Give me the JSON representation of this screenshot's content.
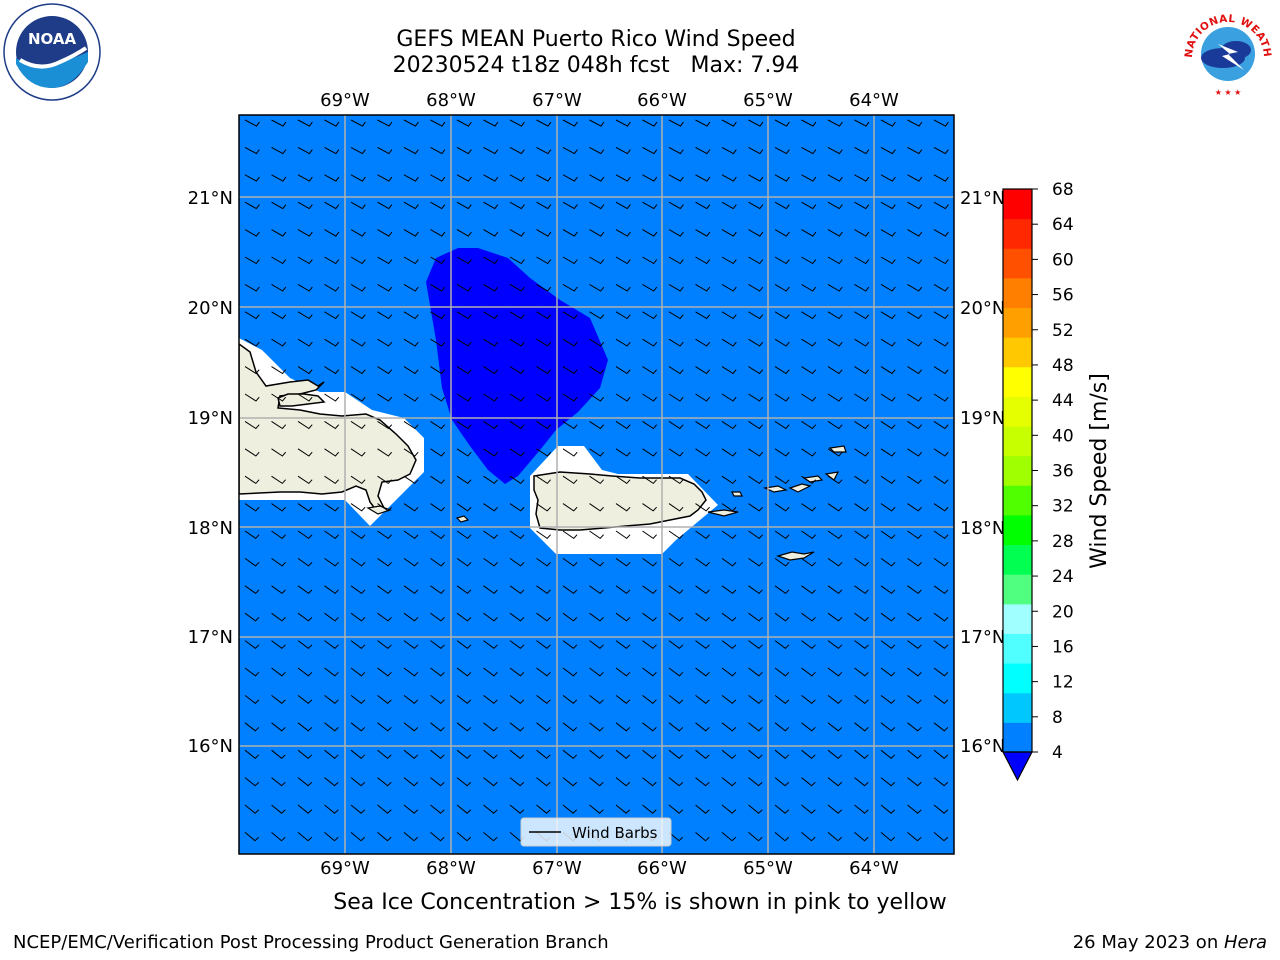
{
  "header": {
    "title_line1": "GEFS MEAN Puerto Rico Wind Speed",
    "title_line2": "20230524 t18z 048h fcst   Max: 7.94"
  },
  "map": {
    "lon_labels": [
      "69°W",
      "68°W",
      "67°W",
      "66°W",
      "65°W",
      "64°W"
    ],
    "lat_labels": [
      "21°N",
      "20°N",
      "19°N",
      "18°N",
      "17°N",
      "16°N"
    ],
    "lon_range": [
      -69.99,
      -63.25
    ],
    "lat_range": [
      15.0,
      21.75
    ],
    "grid": true,
    "ocean_color": "#0080ff",
    "high_wind_color": "#0000ff",
    "land_color": "#efefe0",
    "legend_label": "Wind Barbs"
  },
  "colorbar": {
    "label": "Wind Speed [m/s]",
    "ticks": [
      "4",
      "8",
      "12",
      "16",
      "20",
      "24",
      "28",
      "32",
      "36",
      "40",
      "44",
      "48",
      "52",
      "56",
      "60",
      "64",
      "68"
    ],
    "colors": [
      "#0080ff",
      "#00c8ff",
      "#00ffff",
      "#50ffff",
      "#a0ffff",
      "#50ff80",
      "#00ff50",
      "#00ff00",
      "#50ff00",
      "#a0ff00",
      "#c8ff00",
      "#e6ff00",
      "#ffff00",
      "#ffc800",
      "#ffa000",
      "#ff8000",
      "#ff5000",
      "#ff2800",
      "#ff0000"
    ],
    "under_color": "#0000ff"
  },
  "chart_data": {
    "type": "heatmap",
    "title": "GEFS MEAN Puerto Rico Wind Speed",
    "subtitle": "20230524 t18z 048h fcst   Max: 7.94",
    "variable": "Wind Speed [m/s]",
    "max_value": 7.94,
    "levels": [
      4,
      8,
      12,
      16,
      20,
      24,
      28,
      32,
      36,
      40,
      44,
      48,
      52,
      56,
      60,
      64,
      68
    ],
    "xlim": [
      -69.99,
      -63.25
    ],
    "ylim": [
      15.0,
      21.75
    ]
  },
  "caption": "Sea Ice Concentration > 15% is shown in pink to yellow",
  "footer": {
    "left": "NCEP/EMC/Verification Post Processing Product Generation Branch",
    "right_date": "26 May 2023 on ",
    "right_host": "Hera"
  },
  "logos": {
    "noaa_text": "NOAA",
    "nws_text": "NATIONAL WEATHER SERVICE"
  }
}
